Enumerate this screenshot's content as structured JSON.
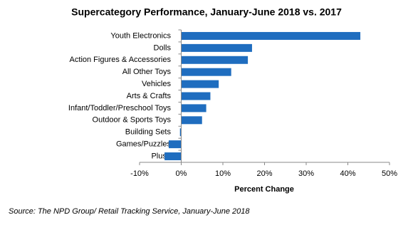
{
  "chart_data": {
    "type": "bar",
    "orientation": "horizontal",
    "title": "Supercategory Performance, January-June 2018 vs. 2017",
    "categories": [
      "Youth Electronics",
      "Dolls",
      "Action Figures & Accessories",
      "All Other Toys",
      "Vehicles",
      "Arts & Crafts",
      "Infant/Toddler/Preschool Toys",
      "Outdoor & Sports Toys",
      "Building Sets",
      "Games/Puzzles",
      "Plush"
    ],
    "values": [
      43,
      17,
      16,
      12,
      9,
      7,
      6,
      5,
      -0.3,
      -3,
      -4
    ],
    "color": "#1f6dbf",
    "xlim": [
      -10,
      50
    ],
    "xticks": [
      {
        "value": -10,
        "label": "-10%"
      },
      {
        "value": 0,
        "label": "0%"
      },
      {
        "value": 10,
        "label": "10%"
      },
      {
        "value": 20,
        "label": "20%"
      },
      {
        "value": 30,
        "label": "30%"
      },
      {
        "value": 40,
        "label": "40%"
      },
      {
        "value": 50,
        "label": "50%"
      }
    ],
    "xlabel": "Percent Change",
    "source": "Source:  The NPD Group/ Retail Tracking Service, January-June 2018"
  }
}
